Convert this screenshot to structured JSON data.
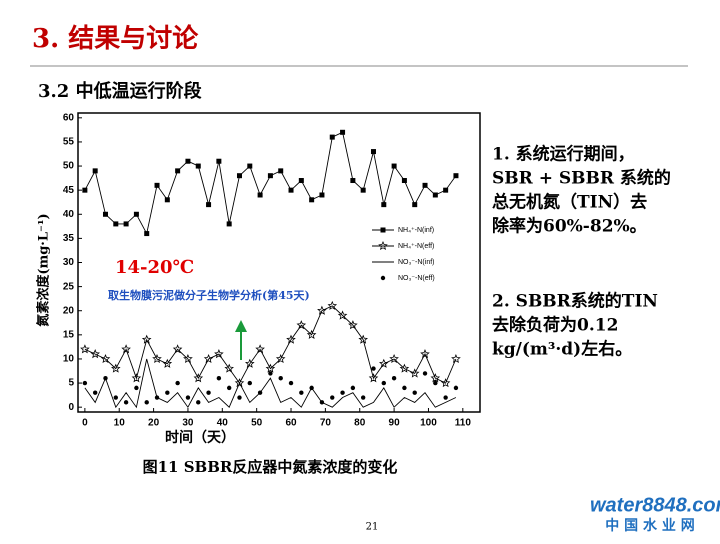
{
  "slide": {
    "title": "3. 结果与讨论",
    "subtitle": "3.2 中低温运行阶段",
    "notes": [
      [
        "1. 系统运行期间，",
        "SBR + SBBR 系统的",
        "总无机氮（TIN）去",
        "除率为60%-82%。"
      ],
      [
        "2. SBBR系统的TIN",
        "去除负荷为0.12",
        "kg/(m³·d)左右。"
      ]
    ],
    "page_number": "21",
    "logo": "water8848.com",
    "logo_sub": "中 国 水 业 网"
  },
  "chart_data": {
    "type": "line",
    "caption": "图11 SBBR反应器中氮素浓度的变化",
    "x_label": "时间（天）",
    "y_label": "氮素浓度(mg·L⁻¹)",
    "annotations": [
      "14-20℃",
      "取生物膜污泥做分子生物学分析(第45天)"
    ],
    "x": [
      0,
      3,
      6,
      9,
      12,
      15,
      18,
      21,
      24,
      27,
      30,
      33,
      36,
      39,
      42,
      45,
      48,
      51,
      54,
      57,
      60,
      63,
      66,
      69,
      72,
      75,
      78,
      81,
      84,
      87,
      90,
      93,
      96,
      99,
      102,
      105,
      108
    ],
    "series": [
      {
        "name": "NH₄⁺-N(inf)",
        "color": "#000000",
        "marker": "square",
        "values": [
          45,
          49,
          40,
          38,
          38,
          40,
          36,
          46,
          43,
          49,
          51,
          50,
          42,
          51,
          38,
          48,
          50,
          44,
          48,
          49,
          45,
          47,
          43,
          44,
          56,
          57,
          47,
          45,
          53,
          42,
          50,
          47,
          42,
          46,
          44,
          45,
          48
        ]
      },
      {
        "name": "NH₄⁺-N(eff)",
        "color": "#000000",
        "marker": "star",
        "values": [
          12,
          11,
          10,
          8,
          12,
          6,
          14,
          10,
          9,
          12,
          10,
          6,
          10,
          11,
          8,
          5,
          9,
          12,
          8,
          10,
          14,
          17,
          15,
          20,
          21,
          19,
          17,
          14,
          6,
          9,
          10,
          8,
          7,
          11,
          6,
          5,
          10
        ]
      },
      {
        "name": "NO₃⁻-N(inf)",
        "color": "#000000",
        "marker": "none",
        "values": [
          4,
          1,
          6,
          0,
          3,
          0,
          10,
          2,
          1,
          3,
          0,
          4,
          1,
          2,
          0,
          5,
          1,
          3,
          6,
          1,
          2,
          0,
          4,
          1,
          0,
          2,
          3,
          0,
          1,
          4,
          0,
          2,
          1,
          3,
          0,
          1,
          2
        ]
      },
      {
        "name": "NO₃⁻-N(eff)",
        "color": "#000000",
        "marker": "dot",
        "values": [
          5,
          3,
          6,
          2,
          1,
          4,
          1,
          2,
          3,
          5,
          2,
          1,
          3,
          6,
          4,
          2,
          5,
          3,
          7,
          6,
          5,
          3,
          4,
          1,
          2,
          3,
          4,
          2,
          8,
          5,
          6,
          4,
          3,
          7,
          5,
          2,
          4
        ]
      }
    ],
    "xlim": [
      -2,
      115
    ],
    "ylim": [
      -1,
      61
    ],
    "xticks": [
      0,
      10,
      20,
      30,
      40,
      50,
      60,
      70,
      80,
      90,
      100,
      110
    ],
    "yticks": [
      0,
      5,
      10,
      15,
      20,
      25,
      30,
      35,
      40,
      45,
      50,
      55,
      60
    ],
    "legend": "right"
  }
}
